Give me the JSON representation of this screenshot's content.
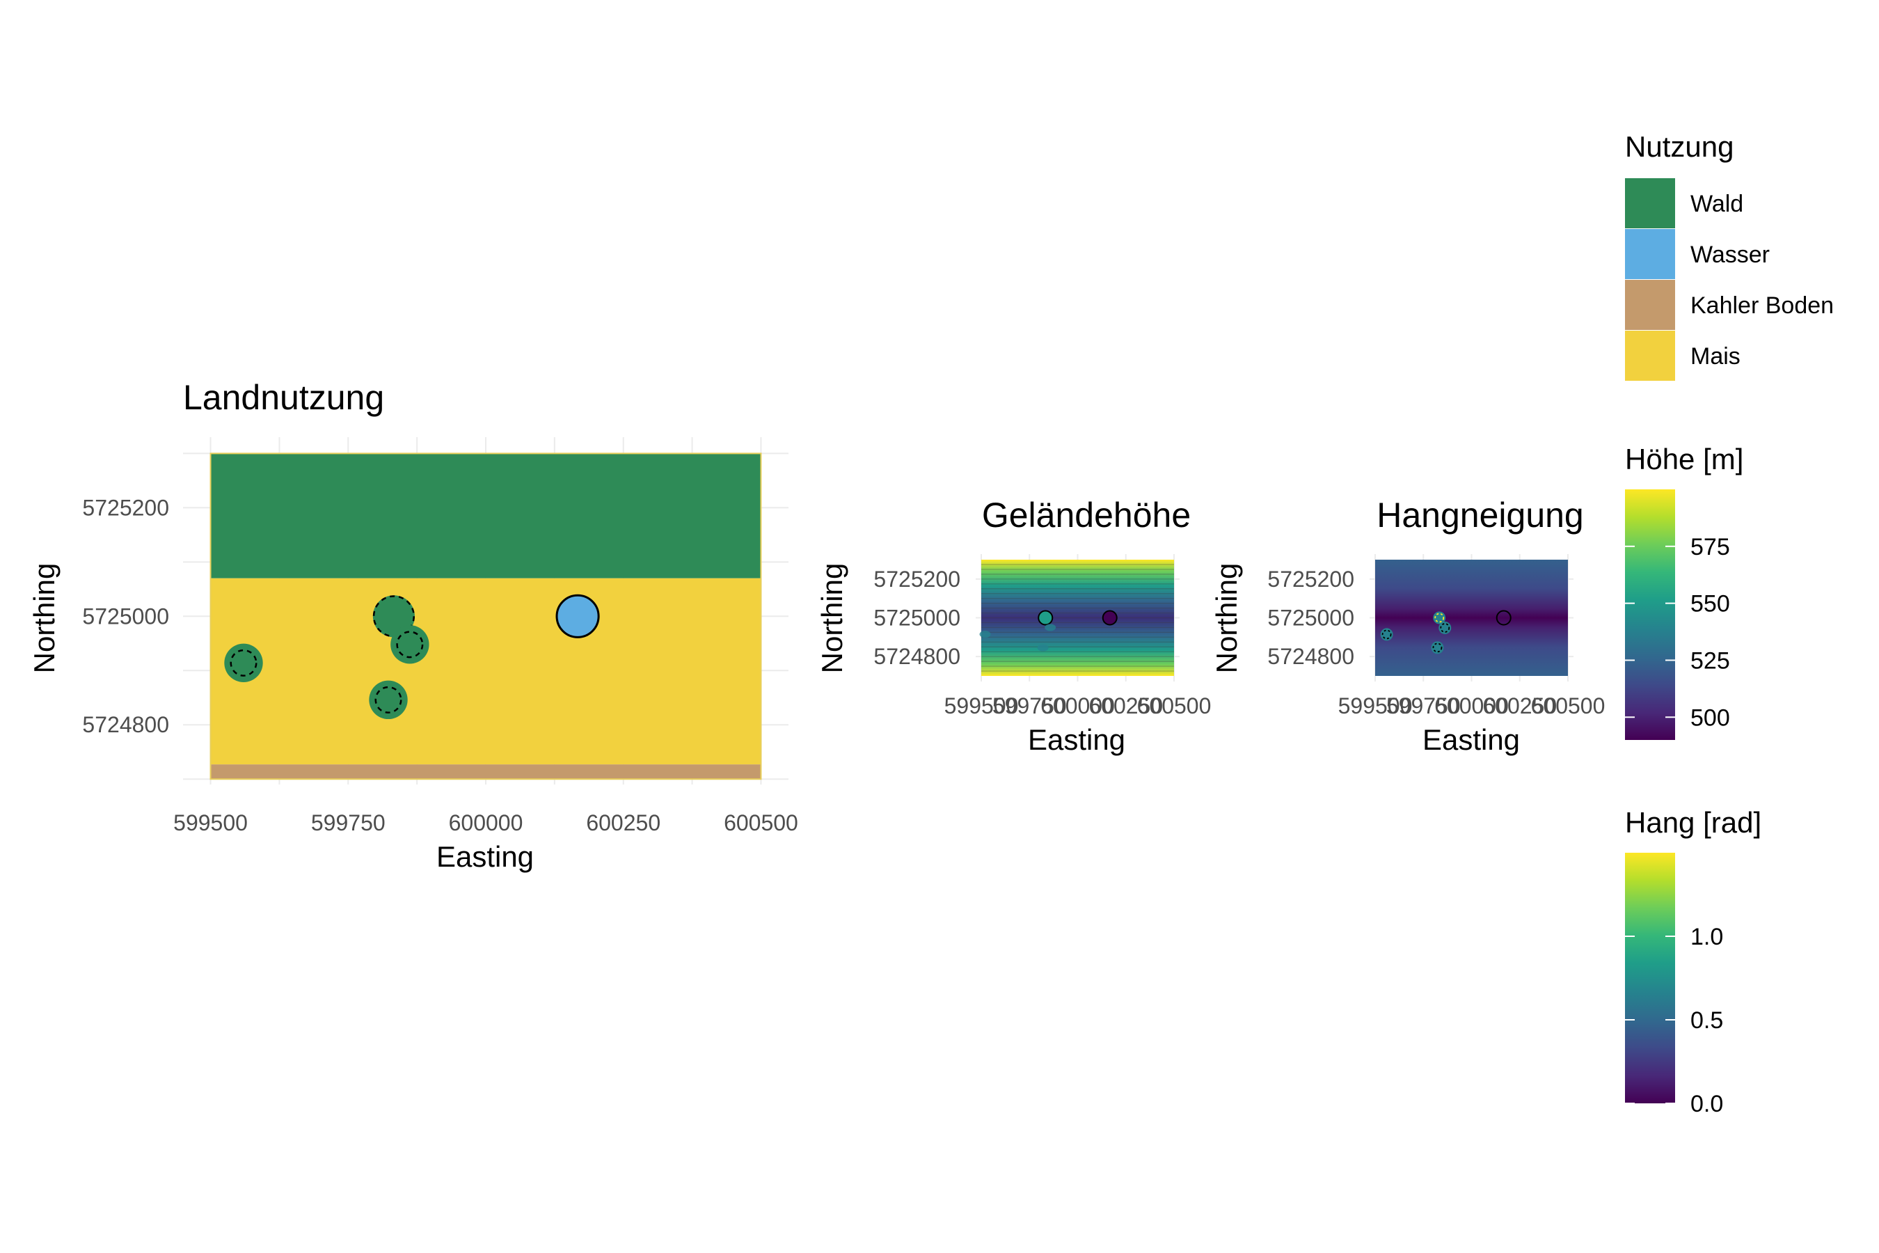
{
  "colors": {
    "Wald": "#2E8B57",
    "Wasser": "#5DADE2",
    "Kahler Boden": "#C49A6C",
    "Mais": "#F2D13E",
    "viridis": [
      "#440154",
      "#482878",
      "#3E4A89",
      "#31688E",
      "#26828E",
      "#1F9E89",
      "#35B779",
      "#6DCD59",
      "#B4DE2C",
      "#FDE725"
    ]
  },
  "chart_data": [
    {
      "id": "landnutzung",
      "type": "raster",
      "title": "Landnutzung",
      "xlabel": "Easting",
      "ylabel": "Northing",
      "xlim": [
        599450,
        600550
      ],
      "ylim": [
        5724690,
        5725330
      ],
      "xticks": [
        599500,
        599750,
        600000,
        600250,
        600500
      ],
      "xtick_labels": [
        "599500",
        "599750",
        "600000",
        "600250",
        "600500"
      ],
      "yticks": [
        5724800,
        5725000,
        5725200
      ],
      "ytick_labels": [
        "5724800",
        "5725000",
        "5725200"
      ],
      "extent": {
        "xmin": 599500,
        "xmax": 600500,
        "ymin": 5724700,
        "ymax": 5725300
      },
      "zones": [
        {
          "class": "Wald",
          "ymin": 5725070,
          "ymax": 5725300
        },
        {
          "class": "Mais",
          "ymin": 5724727,
          "ymax": 5725070
        },
        {
          "class": "Kahler Boden",
          "ymin": 5724700,
          "ymax": 5724727
        }
      ],
      "features": [
        {
          "class": "Wald",
          "x": 599560,
          "y": 5724914,
          "r": 35
        },
        {
          "class": "Wald",
          "x": 599833,
          "y": 5725000,
          "r": 38
        },
        {
          "class": "Wald",
          "x": 599862,
          "y": 5724948,
          "r": 35
        },
        {
          "class": "Wald",
          "x": 599823,
          "y": 5724846,
          "r": 35
        },
        {
          "class": "Wasser",
          "x": 600167,
          "y": 5725000,
          "r": 38
        }
      ]
    },
    {
      "id": "gelaendehoehe",
      "type": "raster",
      "title": "Geländehöhe",
      "xlabel": "Easting",
      "ylabel": "Northing",
      "xlim": [
        599500,
        600500
      ],
      "ylim": [
        5724700,
        5725300
      ],
      "xticks": [
        599500,
        599750,
        600000,
        600250,
        600500
      ],
      "xtick_labels": [
        "599500",
        "599750",
        "600000",
        "600250",
        "600500"
      ],
      "yticks": [
        5724800,
        5725000,
        5725200
      ],
      "ytick_labels": [
        "5724800",
        "5725000",
        "5725200"
      ],
      "value_range": [
        490,
        600
      ],
      "points": [
        {
          "x": 599833,
          "y": 5725000,
          "value": 555
        },
        {
          "x": 600167,
          "y": 5725000,
          "value": 490
        }
      ]
    },
    {
      "id": "hangneigung",
      "type": "raster",
      "title": "Hangneigung",
      "xlabel": "Easting",
      "ylabel": "Northing",
      "xlim": [
        599500,
        600500
      ],
      "ylim": [
        5724700,
        5725300
      ],
      "xticks": [
        599500,
        599750,
        600000,
        600250,
        600500
      ],
      "xtick_labels": [
        "599500",
        "599750",
        "600000",
        "600250",
        "600500"
      ],
      "yticks": [
        5724800,
        5725000,
        5725200
      ],
      "ytick_labels": [
        "5724800",
        "5725000",
        "5725200"
      ],
      "value_range": [
        0,
        1.5
      ],
      "points": [
        {
          "x": 599560,
          "y": 5724914,
          "value": 0.6
        },
        {
          "x": 599833,
          "y": 5725000,
          "value": 0.6
        },
        {
          "x": 599862,
          "y": 5724948,
          "value": 0.6
        },
        {
          "x": 599823,
          "y": 5724846,
          "value": 0.6
        },
        {
          "x": 600167,
          "y": 5725000,
          "value": 0.0
        }
      ]
    }
  ],
  "legends": {
    "nutzung": {
      "title": "Nutzung",
      "items": [
        "Wald",
        "Wasser",
        "Kahler Boden",
        "Mais"
      ]
    },
    "hoehe": {
      "title": "Höhe [m]",
      "range": [
        490,
        600
      ],
      "ticks": [
        500,
        525,
        550,
        575
      ],
      "tick_labels": [
        "500",
        "525",
        "550",
        "575"
      ]
    },
    "hang": {
      "title": "Hang [rad]",
      "range": [
        0,
        1.5
      ],
      "ticks": [
        0,
        0.5,
        1.0
      ],
      "tick_labels": [
        "0.0",
        "0.5",
        "1.0"
      ]
    }
  }
}
